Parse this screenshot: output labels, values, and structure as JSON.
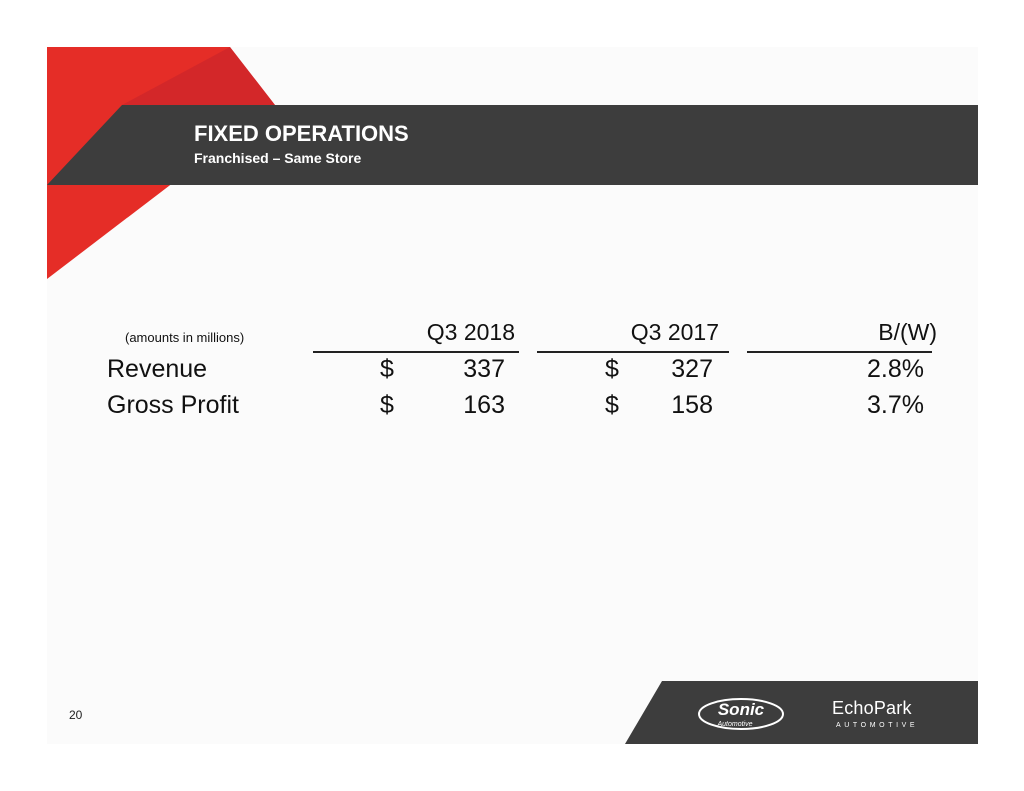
{
  "header": {
    "title": "FIXED OPERATIONS",
    "subtitle": "Franchised – Same Store"
  },
  "table": {
    "note": "(amounts in millions)",
    "columns": [
      "Q3 2018",
      "Q3 2017",
      "B/(W)"
    ],
    "rows": [
      {
        "label": "Revenue",
        "q3_2018_currency": "$",
        "q3_2018": "337",
        "q3_2017_currency": "$",
        "q3_2017": "327",
        "change": "2.8%"
      },
      {
        "label": "Gross Profit",
        "q3_2018_currency": "$",
        "q3_2018": "163",
        "q3_2017_currency": "$",
        "q3_2017": "158",
        "change": "3.7%"
      }
    ]
  },
  "footer": {
    "page_number": "20",
    "logos": {
      "sonic": {
        "word": "Sonic",
        "sub": "Automotive"
      },
      "echopark": {
        "word": "EchoPark",
        "sub": "AUTOMOTIVE"
      }
    }
  },
  "colors": {
    "accent_red": "#e52d27",
    "dark_bar": "#3d3d3d"
  }
}
